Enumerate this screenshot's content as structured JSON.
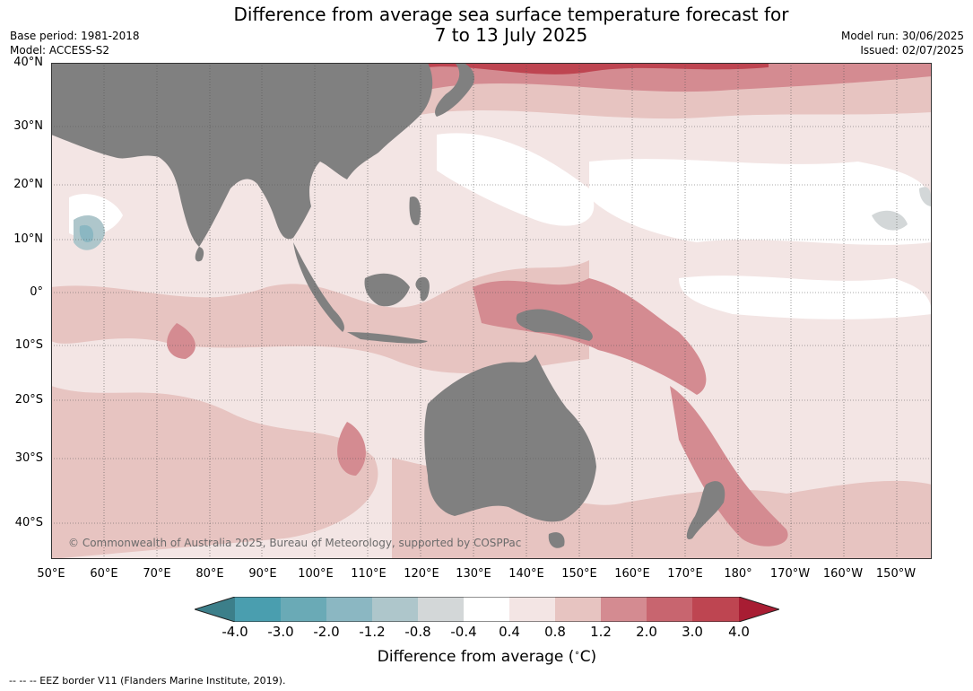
{
  "title": {
    "line1": "Difference from average sea surface temperature forecast for",
    "line2": "7 to 13 July 2025"
  },
  "meta": {
    "base_period": "Base period: 1981-2018",
    "model": "Model: ACCESS-S2",
    "model_run": "Model run: 30/06/2025",
    "issued": "Issued: 02/07/2025"
  },
  "map": {
    "lat_labels": [
      "40°N",
      "30°N",
      "20°N",
      "10°N",
      "0°",
      "10°S",
      "20°S",
      "30°S",
      "40°S"
    ],
    "lon_labels": [
      "50°E",
      "60°E",
      "70°E",
      "80°E",
      "90°E",
      "100°E",
      "110°E",
      "120°E",
      "130°E",
      "140°E",
      "150°E",
      "160°E",
      "170°E",
      "180°",
      "170°W",
      "160°W",
      "150°W"
    ],
    "copyright": "© Commonwealth of Australia 2025, Bureau of Meteorology, supported by COSPPac",
    "land_color": "#808080"
  },
  "colorbar": {
    "ticks": [
      "-4.0",
      "-3.0",
      "-2.0",
      "-1.2",
      "-0.8",
      "-0.4",
      "0.4",
      "0.8",
      "1.2",
      "2.0",
      "3.0",
      "4.0"
    ],
    "colors": [
      "#3c7f8a",
      "#4a9eaf",
      "#6aaab6",
      "#8bb7c2",
      "#aec6cb",
      "#d3d7d8",
      "#ffffff",
      "#f3e5e4",
      "#e7c4c1",
      "#d48b91",
      "#c8656f",
      "#be4551",
      "#a81d33"
    ],
    "label": "Difference from average ($^\\circ$C)"
  },
  "footer": {
    "eez": "--  --  -- EEZ border V11 (Flanders Marine Institute, 2019)."
  }
}
